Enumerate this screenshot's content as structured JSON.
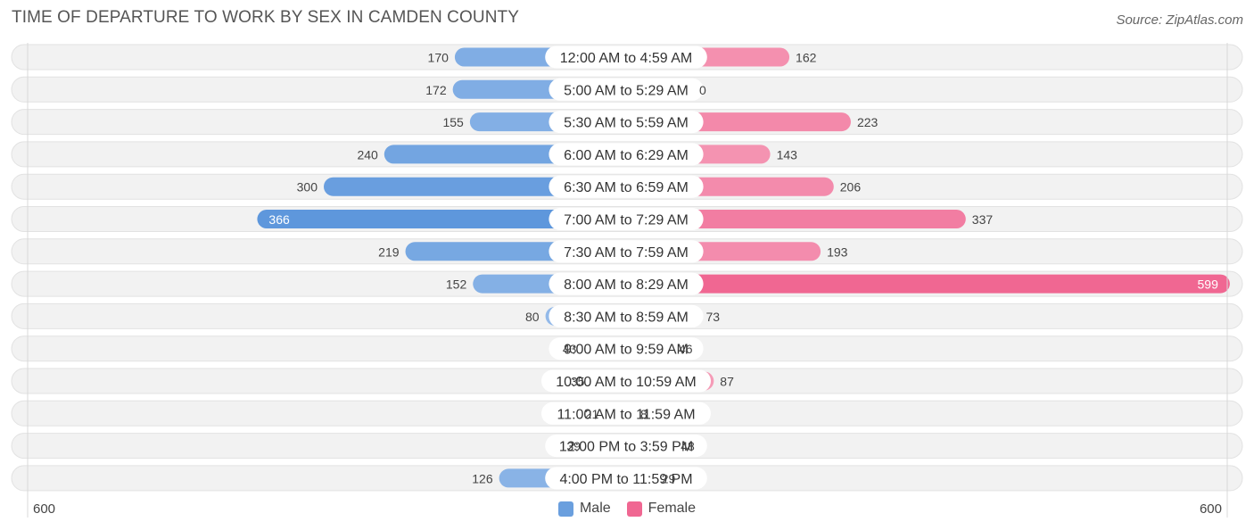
{
  "header": {
    "title": "TIME OF DEPARTURE TO WORK BY SEX IN CAMDEN COUNTY",
    "source": "Source: ZipAtlas.com"
  },
  "legend": {
    "male_label": "Male",
    "female_label": "Female",
    "male_color": "#6a9fde",
    "female_color": "#f06792"
  },
  "axis": {
    "left_label": "600",
    "right_label": "600"
  },
  "chart_data": {
    "type": "bar",
    "orientation": "horizontal-diverging",
    "xlim": [
      -600,
      600
    ],
    "categories": [
      "12:00 AM to 4:59 AM",
      "5:00 AM to 5:29 AM",
      "5:30 AM to 5:59 AM",
      "6:00 AM to 6:29 AM",
      "6:30 AM to 6:59 AM",
      "7:00 AM to 7:29 AM",
      "7:30 AM to 7:59 AM",
      "8:00 AM to 8:29 AM",
      "8:30 AM to 8:59 AM",
      "9:00 AM to 9:59 AM",
      "10:00 AM to 10:59 AM",
      "11:00 AM to 11:59 AM",
      "12:00 PM to 3:59 PM",
      "4:00 PM to 11:59 PM"
    ],
    "series": [
      {
        "name": "Male",
        "values": [
          170,
          172,
          155,
          240,
          300,
          366,
          219,
          152,
          80,
          43,
          35,
          21,
          39,
          126
        ]
      },
      {
        "name": "Female",
        "values": [
          162,
          0,
          223,
          143,
          206,
          337,
          193,
          599,
          73,
          46,
          87,
          8,
          48,
          29
        ]
      }
    ],
    "title": "TIME OF DEPARTURE TO WORK BY SEX IN CAMDEN COUNTY",
    "xlabel": "",
    "ylabel": "",
    "legend_position": "bottom-center"
  }
}
